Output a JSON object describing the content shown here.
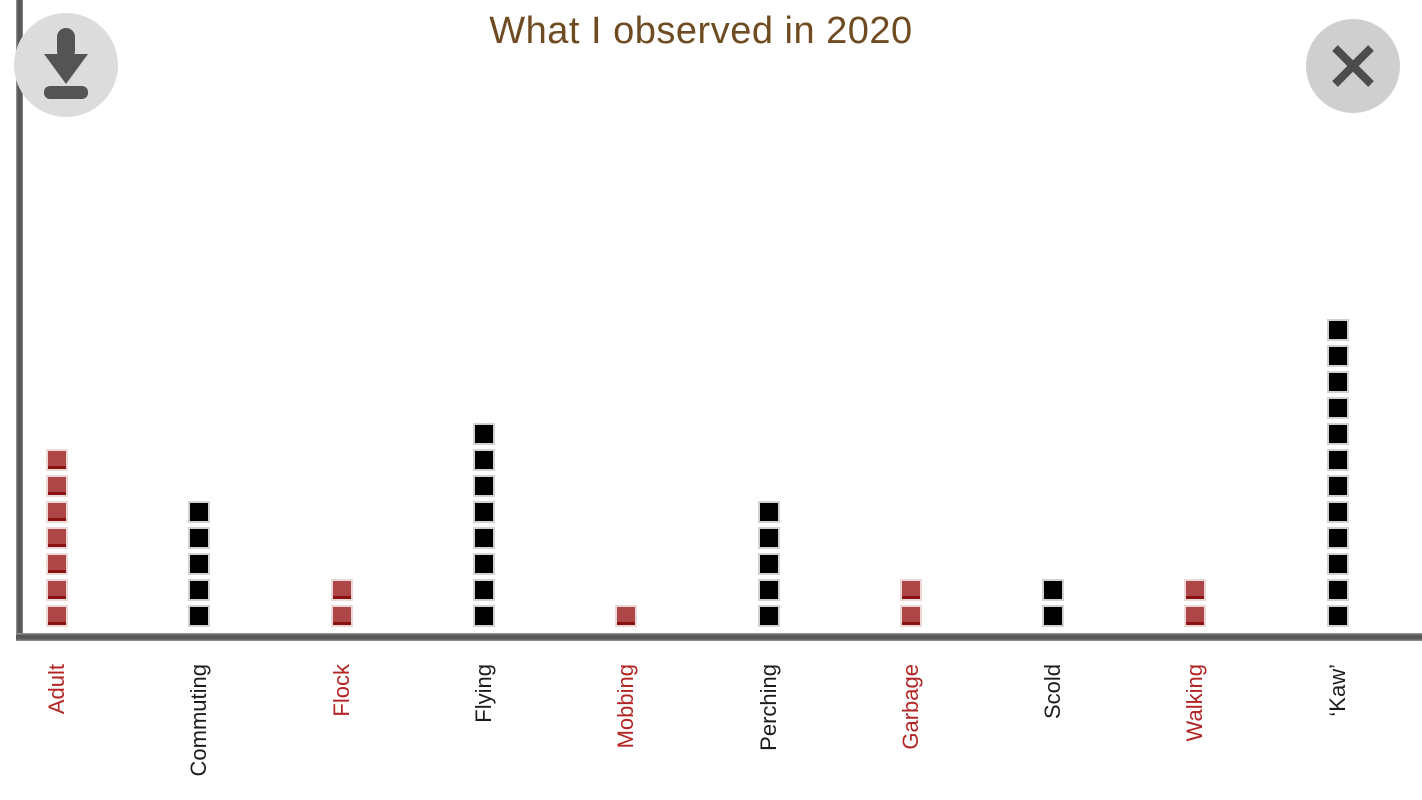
{
  "header": {
    "title": "What I observed in 2020",
    "title_color": "#6f4b22"
  },
  "controls": {
    "download_icon": "download-arrow-to-tray",
    "close_icon": "x-mark",
    "button_bg": "#dcdcdc",
    "glyph_color": "#545454"
  },
  "chart_data": {
    "type": "bar",
    "variant": "unit-square-stack",
    "title": "What I observed in 2020",
    "categories": [
      "Adult",
      "Commuting",
      "Flock",
      "Flying",
      "Mobbing",
      "Perching",
      "Garbage",
      "Scold",
      "Walking",
      "‘Kaw’"
    ],
    "values": [
      7,
      5,
      2,
      8,
      1,
      5,
      2,
      2,
      2,
      12
    ],
    "category_styles": [
      "red",
      "black",
      "red",
      "black",
      "red",
      "black",
      "red",
      "black",
      "red",
      "black"
    ],
    "unit_value": 1,
    "ymax": 12,
    "grid": false,
    "legend": false,
    "x_label_rotation": -90,
    "colors": {
      "red_fill": "#ae4647",
      "red_edge_light": "#edd8d8",
      "red_edge_dark": "#8c1212",
      "black_fill": "#000000",
      "black_edge_light": "#d2d2d2",
      "red_label": "#b32424",
      "black_label": "#1c1c1c",
      "axis": "#585858"
    }
  }
}
